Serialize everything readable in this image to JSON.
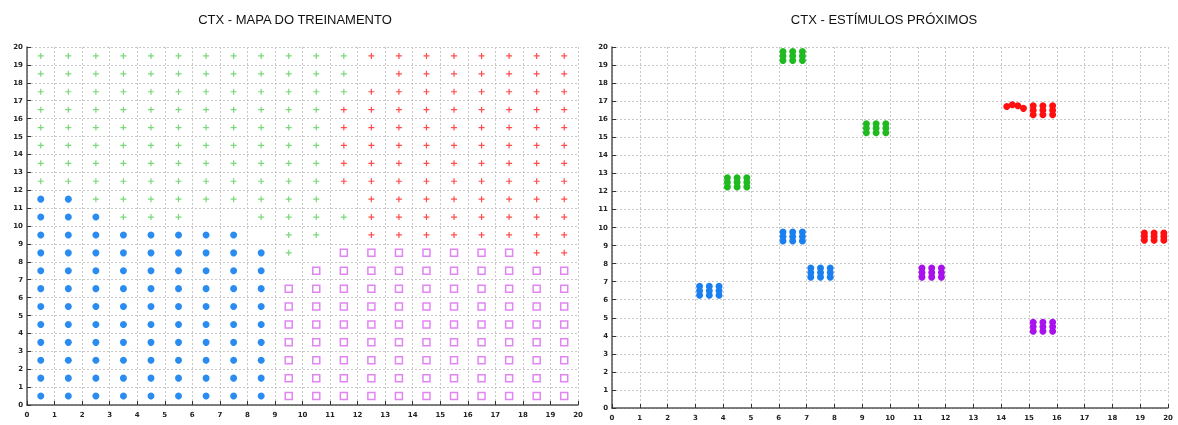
{
  "chart_data": [
    {
      "type": "scatter",
      "title": "CTX - MAPA DO TREINAMENTO",
      "xlim": [
        0,
        20
      ],
      "ylim": [
        0,
        20
      ],
      "xticks": [
        0,
        1,
        2,
        3,
        4,
        5,
        6,
        7,
        8,
        9,
        10,
        11,
        12,
        13,
        14,
        15,
        16,
        17,
        18,
        19,
        20
      ],
      "yticks": [
        0,
        1,
        2,
        3,
        4,
        5,
        6,
        7,
        8,
        9,
        10,
        11,
        12,
        13,
        14,
        15,
        16,
        17,
        18,
        19,
        20
      ],
      "grid": true,
      "series": [
        {
          "color": "#7ad87a",
          "marker": "cross",
          "x": [
            0.5,
            1.5,
            2.5,
            3.5,
            4.5,
            5.5,
            6.5,
            7.5,
            8.5,
            9.5,
            10.5,
            11.5,
            0.5,
            1.5,
            2.5,
            3.5,
            4.5,
            5.5,
            6.5,
            7.5,
            8.5,
            9.5,
            10.5,
            11.5,
            0.5,
            1.5,
            2.5,
            3.5,
            4.5,
            5.5,
            6.5,
            7.5,
            8.5,
            9.5,
            10.5,
            11.5,
            0.5,
            1.5,
            2.5,
            3.5,
            4.5,
            5.5,
            6.5,
            7.5,
            8.5,
            9.5,
            10.5,
            0.5,
            1.5,
            2.5,
            3.5,
            4.5,
            5.5,
            6.5,
            7.5,
            8.5,
            9.5,
            10.5,
            0.5,
            1.5,
            2.5,
            3.5,
            4.5,
            5.5,
            6.5,
            7.5,
            8.5,
            9.5,
            10.5,
            0.5,
            1.5,
            2.5,
            3.5,
            4.5,
            5.5,
            6.5,
            7.5,
            8.5,
            9.5,
            10.5,
            0.5,
            1.5,
            2.5,
            3.5,
            4.5,
            5.5,
            6.5,
            7.5,
            8.5,
            9.5,
            10.5,
            2.5,
            3.5,
            4.5,
            5.5,
            6.5,
            7.5,
            8.5,
            9.5,
            10.5,
            3.5,
            4.5,
            5.5,
            8.5,
            9.5,
            10.5,
            11.5,
            9.5,
            10.5,
            9.5
          ],
          "values": [
            19.5,
            19.5,
            19.5,
            19.5,
            19.5,
            19.5,
            19.5,
            19.5,
            19.5,
            19.5,
            19.5,
            19.5,
            18.5,
            18.5,
            18.5,
            18.5,
            18.5,
            18.5,
            18.5,
            18.5,
            18.5,
            18.5,
            18.5,
            18.5,
            17.5,
            17.5,
            17.5,
            17.5,
            17.5,
            17.5,
            17.5,
            17.5,
            17.5,
            17.5,
            17.5,
            17.5,
            16.5,
            16.5,
            16.5,
            16.5,
            16.5,
            16.5,
            16.5,
            16.5,
            16.5,
            16.5,
            16.5,
            15.5,
            15.5,
            15.5,
            15.5,
            15.5,
            15.5,
            15.5,
            15.5,
            15.5,
            15.5,
            15.5,
            14.5,
            14.5,
            14.5,
            14.5,
            14.5,
            14.5,
            14.5,
            14.5,
            14.5,
            14.5,
            14.5,
            13.5,
            13.5,
            13.5,
            13.5,
            13.5,
            13.5,
            13.5,
            13.5,
            13.5,
            13.5,
            13.5,
            12.5,
            12.5,
            12.5,
            12.5,
            12.5,
            12.5,
            12.5,
            12.5,
            12.5,
            12.5,
            12.5,
            11.5,
            11.5,
            11.5,
            11.5,
            11.5,
            11.5,
            11.5,
            11.5,
            11.5,
            10.5,
            10.5,
            10.5,
            10.5,
            10.5,
            10.5,
            10.5,
            9.5,
            9.5,
            8.5
          ]
        },
        {
          "color": "#ff4d4d",
          "marker": "cross",
          "x": [
            12.5,
            13.5,
            14.5,
            15.5,
            16.5,
            17.5,
            18.5,
            19.5,
            13.5,
            14.5,
            15.5,
            16.5,
            17.5,
            18.5,
            19.5,
            12.5,
            13.5,
            14.5,
            15.5,
            16.5,
            17.5,
            18.5,
            19.5,
            11.5,
            12.5,
            13.5,
            14.5,
            15.5,
            16.5,
            17.5,
            18.5,
            19.5,
            11.5,
            12.5,
            13.5,
            14.5,
            15.5,
            16.5,
            17.5,
            18.5,
            19.5,
            11.5,
            12.5,
            13.5,
            14.5,
            15.5,
            16.5,
            17.5,
            18.5,
            19.5,
            11.5,
            12.5,
            13.5,
            14.5,
            15.5,
            16.5,
            17.5,
            18.5,
            19.5,
            11.5,
            12.5,
            13.5,
            14.5,
            15.5,
            16.5,
            17.5,
            18.5,
            19.5,
            12.5,
            13.5,
            14.5,
            15.5,
            16.5,
            17.5,
            18.5,
            19.5,
            12.5,
            13.5,
            14.5,
            15.5,
            16.5,
            17.5,
            18.5,
            19.5,
            12.5,
            13.5,
            14.5,
            15.5,
            16.5,
            17.5,
            18.5,
            19.5,
            18.5,
            19.5
          ],
          "values": [
            19.5,
            19.5,
            19.5,
            19.5,
            19.5,
            19.5,
            19.5,
            19.5,
            18.5,
            18.5,
            18.5,
            18.5,
            18.5,
            18.5,
            18.5,
            17.5,
            17.5,
            17.5,
            17.5,
            17.5,
            17.5,
            17.5,
            17.5,
            16.5,
            16.5,
            16.5,
            16.5,
            16.5,
            16.5,
            16.5,
            16.5,
            16.5,
            15.5,
            15.5,
            15.5,
            15.5,
            15.5,
            15.5,
            15.5,
            15.5,
            15.5,
            14.5,
            14.5,
            14.5,
            14.5,
            14.5,
            14.5,
            14.5,
            14.5,
            14.5,
            13.5,
            13.5,
            13.5,
            13.5,
            13.5,
            13.5,
            13.5,
            13.5,
            13.5,
            12.5,
            12.5,
            12.5,
            12.5,
            12.5,
            12.5,
            12.5,
            12.5,
            12.5,
            11.5,
            11.5,
            11.5,
            11.5,
            11.5,
            11.5,
            11.5,
            11.5,
            10.5,
            10.5,
            10.5,
            10.5,
            10.5,
            10.5,
            10.5,
            10.5,
            9.5,
            9.5,
            9.5,
            9.5,
            9.5,
            9.5,
            9.5,
            9.5,
            8.5,
            8.5
          ]
        },
        {
          "color": "#2a8cf0",
          "marker": "circle",
          "x": [
            0.5,
            1.5,
            0.5,
            1.5,
            2.5,
            0.5,
            1.5,
            2.5,
            3.5,
            4.5,
            5.5,
            6.5,
            7.5,
            0.5,
            1.5,
            2.5,
            3.5,
            4.5,
            5.5,
            6.5,
            7.5,
            8.5,
            0.5,
            1.5,
            2.5,
            3.5,
            4.5,
            5.5,
            6.5,
            7.5,
            8.5,
            0.5,
            1.5,
            2.5,
            3.5,
            4.5,
            5.5,
            6.5,
            7.5,
            8.5,
            0.5,
            1.5,
            2.5,
            3.5,
            4.5,
            5.5,
            6.5,
            7.5,
            8.5,
            0.5,
            1.5,
            2.5,
            3.5,
            4.5,
            5.5,
            6.5,
            7.5,
            8.5,
            0.5,
            1.5,
            2.5,
            3.5,
            4.5,
            5.5,
            6.5,
            7.5,
            8.5,
            0.5,
            1.5,
            2.5,
            3.5,
            4.5,
            5.5,
            6.5,
            7.5,
            8.5,
            0.5,
            1.5,
            2.5,
            3.5,
            4.5,
            5.5,
            6.5,
            7.5,
            8.5,
            0.5,
            1.5,
            2.5,
            3.5,
            4.5,
            5.5,
            6.5,
            7.5,
            8.5
          ],
          "values": [
            11.5,
            11.5,
            10.5,
            10.5,
            10.5,
            9.5,
            9.5,
            9.5,
            9.5,
            9.5,
            9.5,
            9.5,
            9.5,
            8.5,
            8.5,
            8.5,
            8.5,
            8.5,
            8.5,
            8.5,
            8.5,
            8.5,
            7.5,
            7.5,
            7.5,
            7.5,
            7.5,
            7.5,
            7.5,
            7.5,
            7.5,
            6.5,
            6.5,
            6.5,
            6.5,
            6.5,
            6.5,
            6.5,
            6.5,
            6.5,
            5.5,
            5.5,
            5.5,
            5.5,
            5.5,
            5.5,
            5.5,
            5.5,
            5.5,
            4.5,
            4.5,
            4.5,
            4.5,
            4.5,
            4.5,
            4.5,
            4.5,
            4.5,
            3.5,
            3.5,
            3.5,
            3.5,
            3.5,
            3.5,
            3.5,
            3.5,
            3.5,
            2.5,
            2.5,
            2.5,
            2.5,
            2.5,
            2.5,
            2.5,
            2.5,
            2.5,
            1.5,
            1.5,
            1.5,
            1.5,
            1.5,
            1.5,
            1.5,
            1.5,
            1.5,
            0.5,
            0.5,
            0.5,
            0.5,
            0.5,
            0.5,
            0.5,
            0.5,
            0.5
          ]
        },
        {
          "color": "#d966f0",
          "marker": "square",
          "x": [
            11.5,
            12.5,
            13.5,
            14.5,
            15.5,
            16.5,
            17.5,
            10.5,
            11.5,
            12.5,
            13.5,
            14.5,
            15.5,
            16.5,
            17.5,
            18.5,
            19.5,
            9.5,
            10.5,
            11.5,
            12.5,
            13.5,
            14.5,
            15.5,
            16.5,
            17.5,
            18.5,
            19.5,
            9.5,
            10.5,
            11.5,
            12.5,
            13.5,
            14.5,
            15.5,
            16.5,
            17.5,
            18.5,
            19.5,
            9.5,
            10.5,
            11.5,
            12.5,
            13.5,
            14.5,
            15.5,
            16.5,
            17.5,
            18.5,
            19.5,
            9.5,
            10.5,
            11.5,
            12.5,
            13.5,
            14.5,
            15.5,
            16.5,
            17.5,
            18.5,
            19.5,
            9.5,
            10.5,
            11.5,
            12.5,
            13.5,
            14.5,
            15.5,
            16.5,
            17.5,
            18.5,
            19.5,
            9.5,
            10.5,
            11.5,
            12.5,
            13.5,
            14.5,
            15.5,
            16.5,
            17.5,
            18.5,
            19.5,
            9.5,
            10.5,
            11.5,
            12.5,
            13.5,
            14.5,
            15.5,
            16.5,
            17.5,
            18.5,
            19.5
          ],
          "values": [
            8.5,
            8.5,
            8.5,
            8.5,
            8.5,
            8.5,
            8.5,
            7.5,
            7.5,
            7.5,
            7.5,
            7.5,
            7.5,
            7.5,
            7.5,
            7.5,
            7.5,
            6.5,
            6.5,
            6.5,
            6.5,
            6.5,
            6.5,
            6.5,
            6.5,
            6.5,
            6.5,
            6.5,
            5.5,
            5.5,
            5.5,
            5.5,
            5.5,
            5.5,
            5.5,
            5.5,
            5.5,
            5.5,
            5.5,
            4.5,
            4.5,
            4.5,
            4.5,
            4.5,
            4.5,
            4.5,
            4.5,
            4.5,
            4.5,
            4.5,
            3.5,
            3.5,
            3.5,
            3.5,
            3.5,
            3.5,
            3.5,
            3.5,
            3.5,
            3.5,
            3.5,
            2.5,
            2.5,
            2.5,
            2.5,
            2.5,
            2.5,
            2.5,
            2.5,
            2.5,
            2.5,
            2.5,
            1.5,
            1.5,
            1.5,
            1.5,
            1.5,
            1.5,
            1.5,
            1.5,
            1.5,
            1.5,
            1.5,
            0.5,
            0.5,
            0.5,
            0.5,
            0.5,
            0.5,
            0.5,
            0.5,
            0.5,
            0.5,
            0.5
          ]
        }
      ]
    },
    {
      "type": "scatter",
      "title": "CTX - ESTÍMULOS PRÓXIMOS",
      "xlim": [
        0,
        20
      ],
      "ylim": [
        0,
        20
      ],
      "xticks": [
        0,
        1,
        2,
        3,
        4,
        5,
        6,
        7,
        8,
        9,
        10,
        11,
        12,
        13,
        14,
        15,
        16,
        17,
        18,
        19,
        20
      ],
      "yticks": [
        0,
        1,
        2,
        3,
        4,
        5,
        6,
        7,
        8,
        9,
        10,
        11,
        12,
        13,
        14,
        15,
        16,
        17,
        18,
        19,
        20
      ],
      "grid": true,
      "marker": "circle",
      "series": [
        {
          "color": "#1a80f0",
          "x": [
            3.15,
            3.5,
            3.85,
            3.15,
            3.5,
            3.85,
            3.15,
            3.5,
            3.85,
            6.15,
            6.5,
            6.85,
            6.15,
            6.5,
            6.85,
            6.15,
            6.5,
            6.85,
            7.15,
            7.5,
            7.85,
            7.15,
            7.5,
            7.85,
            7.15,
            7.5,
            7.85
          ],
          "values": [
            6.25,
            6.25,
            6.25,
            6.5,
            6.5,
            6.5,
            6.75,
            6.75,
            6.75,
            9.25,
            9.25,
            9.25,
            9.5,
            9.5,
            9.5,
            9.75,
            9.75,
            9.75,
            7.25,
            7.25,
            7.25,
            7.5,
            7.5,
            7.5,
            7.75,
            7.75,
            7.75
          ]
        },
        {
          "color": "#1fba1f",
          "x": [
            4.15,
            4.5,
            4.85,
            4.15,
            4.5,
            4.85,
            4.15,
            4.5,
            4.85,
            6.15,
            6.5,
            6.85,
            6.15,
            6.5,
            6.85,
            6.15,
            6.5,
            6.85,
            9.15,
            9.5,
            9.85,
            9.15,
            9.5,
            9.85,
            9.15,
            9.5,
            9.85
          ],
          "values": [
            12.25,
            12.25,
            12.25,
            12.5,
            12.5,
            12.5,
            12.75,
            12.75,
            12.75,
            19.25,
            19.25,
            19.25,
            19.5,
            19.5,
            19.5,
            19.75,
            19.75,
            19.75,
            15.25,
            15.25,
            15.25,
            15.5,
            15.5,
            15.5,
            15.75,
            15.75,
            15.75
          ]
        },
        {
          "color": "#ff1010",
          "x": [
            15.15,
            15.5,
            15.85,
            15.15,
            15.5,
            15.85,
            15.15,
            15.5,
            15.85,
            19.15,
            19.5,
            19.85,
            19.15,
            19.5,
            19.85,
            19.15,
            19.5,
            19.85,
            14.2,
            14.4,
            14.6,
            14.8
          ],
          "values": [
            16.25,
            16.25,
            16.25,
            16.5,
            16.5,
            16.5,
            16.75,
            16.75,
            16.75,
            9.3,
            9.3,
            9.3,
            9.5,
            9.5,
            9.5,
            9.7,
            9.7,
            9.7,
            16.7,
            16.8,
            16.75,
            16.6
          ]
        },
        {
          "color": "#aa10ee",
          "x": [
            11.15,
            11.5,
            11.85,
            11.15,
            11.5,
            11.85,
            11.15,
            11.5,
            11.85,
            15.15,
            15.5,
            15.85,
            15.15,
            15.5,
            15.85,
            15.15,
            15.5,
            15.85
          ],
          "values": [
            7.25,
            7.25,
            7.25,
            7.5,
            7.5,
            7.5,
            7.75,
            7.75,
            7.75,
            4.25,
            4.25,
            4.25,
            4.5,
            4.5,
            4.5,
            4.75,
            4.75,
            4.75
          ]
        }
      ]
    }
  ]
}
